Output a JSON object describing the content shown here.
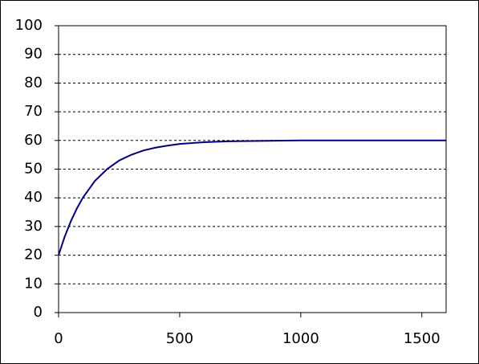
{
  "chart_data": {
    "type": "line",
    "x": [
      0,
      25,
      50,
      75,
      100,
      150,
      200,
      250,
      300,
      350,
      400,
      450,
      500,
      600,
      700,
      800,
      1000,
      1200,
      1400,
      1600
    ],
    "series": [
      {
        "color": "#000080",
        "values": [
          20,
          26.4,
          31.7,
          36.2,
          40.0,
          45.9,
          50.0,
          53.0,
          55.0,
          56.5,
          57.5,
          58.2,
          58.8,
          59.4,
          59.7,
          59.8,
          60.0,
          60.0,
          60.0,
          60.0
        ]
      }
    ],
    "xlim": [
      0,
      1600
    ],
    "xticks": [
      0,
      500,
      1000,
      1500
    ],
    "ylim": [
      0,
      100
    ],
    "yticks": [
      0,
      10,
      20,
      30,
      40,
      50,
      60,
      70,
      80,
      90,
      100
    ],
    "grid": true
  }
}
